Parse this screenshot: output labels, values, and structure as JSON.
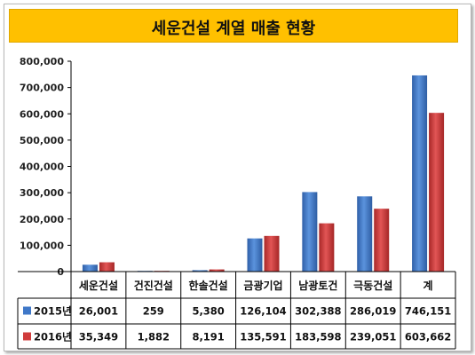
{
  "chart_data": {
    "type": "bar",
    "title": "세운건설 계열 매출 현황",
    "categories": [
      "세운건설",
      "건진건설",
      "한솔건설",
      "금광기업",
      "남광토건",
      "극동건설",
      "계"
    ],
    "series": [
      {
        "name": "2015년",
        "color": "#3f78c8",
        "values": [
          26001,
          259,
          5380,
          126104,
          302388,
          286019,
          746151
        ],
        "labels": [
          "26,001",
          "259",
          "5,380",
          "126,104",
          "302,388",
          "286,019",
          "746,151"
        ]
      },
      {
        "name": "2016년",
        "color": "#d03c3c",
        "values": [
          35349,
          1882,
          8191,
          135591,
          183598,
          239051,
          603662
        ],
        "labels": [
          "35,349",
          "1,882",
          "8,191",
          "135,591",
          "183,598",
          "239,051",
          "603,662"
        ]
      }
    ],
    "ylim": [
      0,
      800000
    ],
    "yticks": [
      0,
      100000,
      200000,
      300000,
      400000,
      500000,
      600000,
      700000,
      800000
    ],
    "ytick_labels": [
      "0",
      "100,000",
      "200,000",
      "300,000",
      "400,000",
      "500,000",
      "600,000",
      "700,000",
      "800,000"
    ],
    "grid": false,
    "legend": "data-table"
  }
}
